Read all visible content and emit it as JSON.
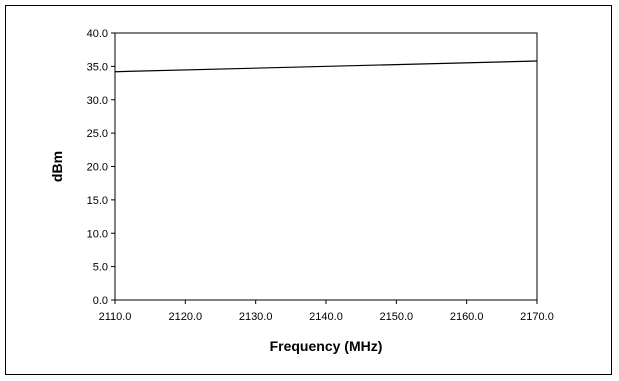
{
  "chart_data": {
    "type": "line",
    "title": "",
    "xlabel": "Frequency (MHz)",
    "ylabel": "dBm",
    "xlim": [
      2110.0,
      2170.0
    ],
    "ylim": [
      0.0,
      40.0
    ],
    "x_ticks": [
      "2110.0",
      "2120.0",
      "2130.0",
      "2140.0",
      "2150.0",
      "2160.0",
      "2170.0"
    ],
    "y_ticks": [
      "0.0",
      "5.0",
      "10.0",
      "15.0",
      "20.0",
      "25.0",
      "30.0",
      "35.0",
      "40.0"
    ],
    "grid": false,
    "legend": "none",
    "series": [
      {
        "x": [
          2110.0,
          2170.0
        ],
        "y": [
          34.2,
          35.8
        ],
        "color": "#000000"
      }
    ]
  }
}
